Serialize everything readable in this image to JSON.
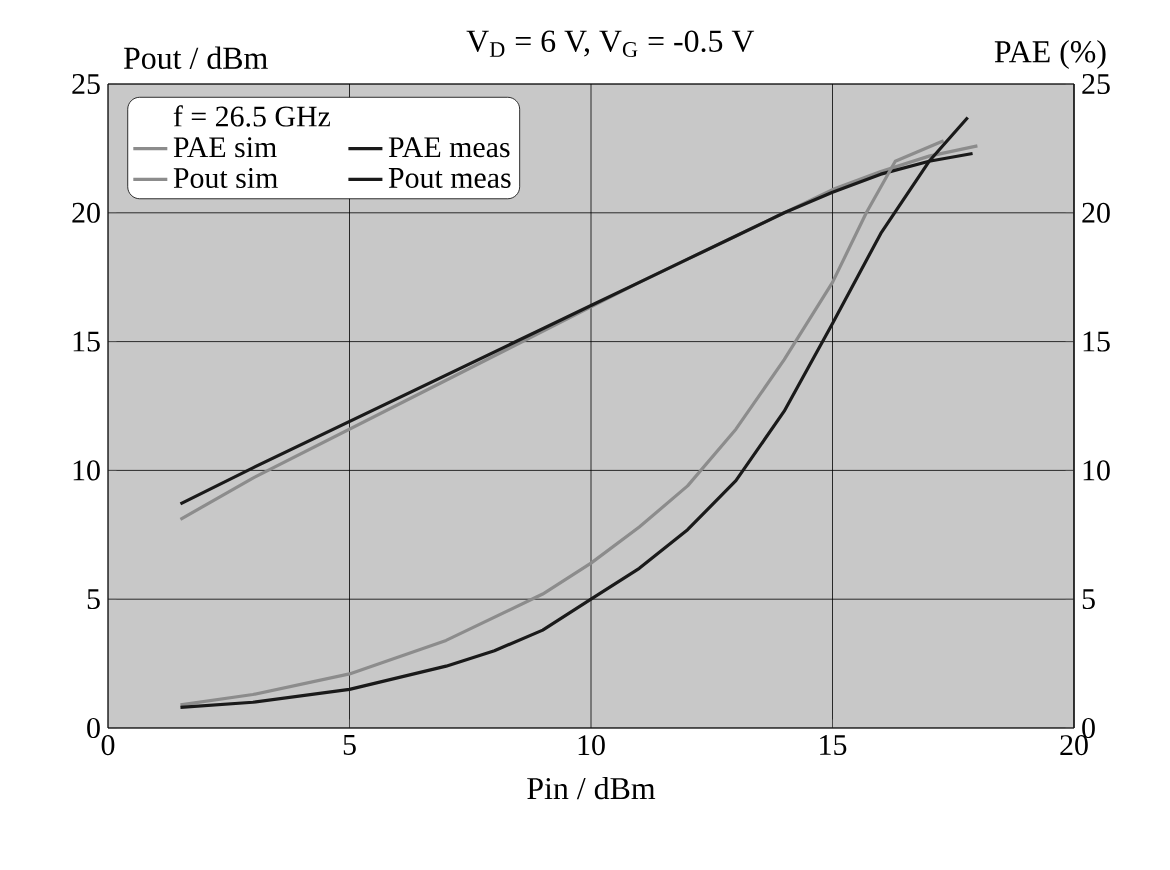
{
  "chart_data": {
    "type": "line",
    "title": "V$_{D}$ = 6 V, V$_{G}$ = -0.5 V",
    "ylabel": "Pout / dBm",
    "y2label": "PAE (%)",
    "xlabel": "Pin / dBm",
    "legend_title": "f = 26.5 GHz",
    "xlim": [
      0,
      20
    ],
    "xticks": [
      0,
      5,
      10,
      15,
      20
    ],
    "ylim": [
      0,
      25
    ],
    "yticks": [
      0,
      5,
      10,
      15,
      20,
      25
    ],
    "y2lim": [
      0,
      25
    ],
    "y2ticks": [
      0,
      5,
      10,
      15,
      20,
      25
    ],
    "grid": true,
    "legend": "top left",
    "marker": "none",
    "line_style": "solid",
    "series": [
      {
        "name": "PAE sim",
        "color": "#8c8c8c",
        "axis": "y2",
        "x": [
          1.5,
          3,
          5,
          7,
          9,
          10,
          11,
          12,
          13,
          14,
          15,
          15.7,
          16.3,
          17.3
        ],
        "values": [
          0.9,
          1.3,
          2.1,
          3.4,
          5.2,
          6.4,
          7.8,
          9.4,
          11.6,
          14.3,
          17.3,
          20,
          22,
          22.8
        ]
      },
      {
        "name": "PAE meas",
        "color": "#1a1a1a",
        "axis": "y2",
        "x": [
          1.5,
          3,
          5,
          7,
          8,
          9,
          10,
          11,
          12,
          13,
          14,
          15,
          16,
          17,
          17.8
        ],
        "values": [
          0.8,
          1.0,
          1.5,
          2.4,
          3,
          3.8,
          5,
          6.2,
          7.7,
          9.6,
          12.3,
          15.7,
          19.2,
          22,
          23.7
        ]
      },
      {
        "name": "Pout sim",
        "color": "#8c8c8c",
        "x": [
          1.5,
          3,
          5,
          7,
          9,
          11,
          13,
          15,
          16,
          17,
          18
        ],
        "values": [
          8.1,
          9.7,
          11.6,
          13.5,
          15.4,
          17.3,
          19.1,
          20.9,
          21.6,
          22.2,
          22.6
        ]
      },
      {
        "name": "Pout meas",
        "color": "#1a1a1a",
        "x": [
          1.5,
          3,
          5,
          7,
          9,
          10,
          11,
          12,
          13,
          14,
          15,
          16,
          17,
          17.9
        ],
        "values": [
          8.7,
          10.1,
          11.9,
          13.7,
          15.5,
          16.4,
          17.3,
          18.2,
          19.1,
          20,
          20.8,
          21.5,
          22,
          22.3
        ]
      }
    ]
  }
}
